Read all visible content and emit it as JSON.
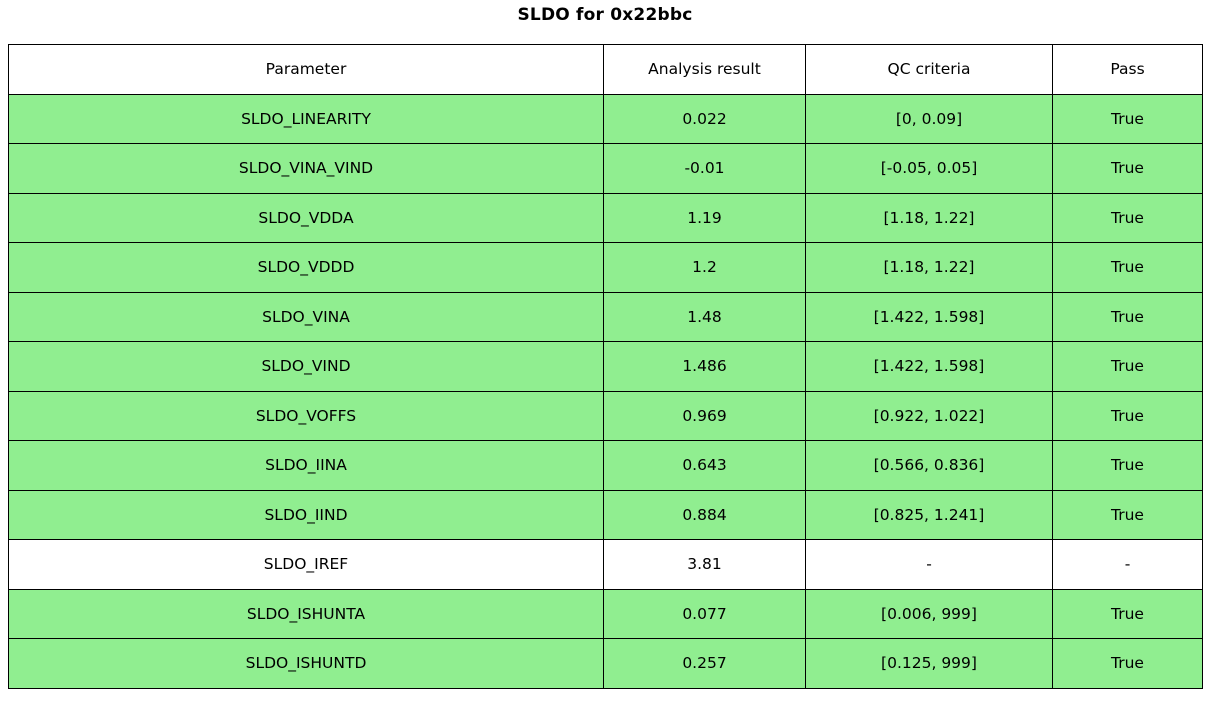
{
  "title": "SLDO for 0x22bbc",
  "colors": {
    "pass_row_bg": "#90ee90",
    "neutral_row_bg": "#ffffff",
    "header_bg": "#ffffff",
    "border": "#000000",
    "text": "#000000"
  },
  "chart_data": {
    "type": "table",
    "title": "SLDO for 0x22bbc",
    "columns": [
      "Parameter",
      "Analysis result",
      "QC criteria",
      "Pass"
    ],
    "rows": [
      {
        "parameter": "SLDO_LINEARITY",
        "analysis_result": "0.022",
        "qc_criteria": "[0, 0.09]",
        "pass": "True",
        "highlighted": true
      },
      {
        "parameter": "SLDO_VINA_VIND",
        "analysis_result": "-0.01",
        "qc_criteria": "[-0.05, 0.05]",
        "pass": "True",
        "highlighted": true
      },
      {
        "parameter": "SLDO_VDDA",
        "analysis_result": "1.19",
        "qc_criteria": "[1.18, 1.22]",
        "pass": "True",
        "highlighted": true
      },
      {
        "parameter": "SLDO_VDDD",
        "analysis_result": "1.2",
        "qc_criteria": "[1.18, 1.22]",
        "pass": "True",
        "highlighted": true
      },
      {
        "parameter": "SLDO_VINA",
        "analysis_result": "1.48",
        "qc_criteria": "[1.422, 1.598]",
        "pass": "True",
        "highlighted": true
      },
      {
        "parameter": "SLDO_VIND",
        "analysis_result": "1.486",
        "qc_criteria": "[1.422, 1.598]",
        "pass": "True",
        "highlighted": true
      },
      {
        "parameter": "SLDO_VOFFS",
        "analysis_result": "0.969",
        "qc_criteria": "[0.922, 1.022]",
        "pass": "True",
        "highlighted": true
      },
      {
        "parameter": "SLDO_IINA",
        "analysis_result": "0.643",
        "qc_criteria": "[0.566, 0.836]",
        "pass": "True",
        "highlighted": true
      },
      {
        "parameter": "SLDO_IIND",
        "analysis_result": "0.884",
        "qc_criteria": "[0.825, 1.241]",
        "pass": "True",
        "highlighted": true
      },
      {
        "parameter": "SLDO_IREF",
        "analysis_result": "3.81",
        "qc_criteria": "-",
        "pass": "-",
        "highlighted": false
      },
      {
        "parameter": "SLDO_ISHUNTA",
        "analysis_result": "0.077",
        "qc_criteria": "[0.006, 999]",
        "pass": "True",
        "highlighted": true
      },
      {
        "parameter": "SLDO_ISHUNTD",
        "analysis_result": "0.257",
        "qc_criteria": "[0.125, 999]",
        "pass": "True",
        "highlighted": true
      }
    ]
  }
}
